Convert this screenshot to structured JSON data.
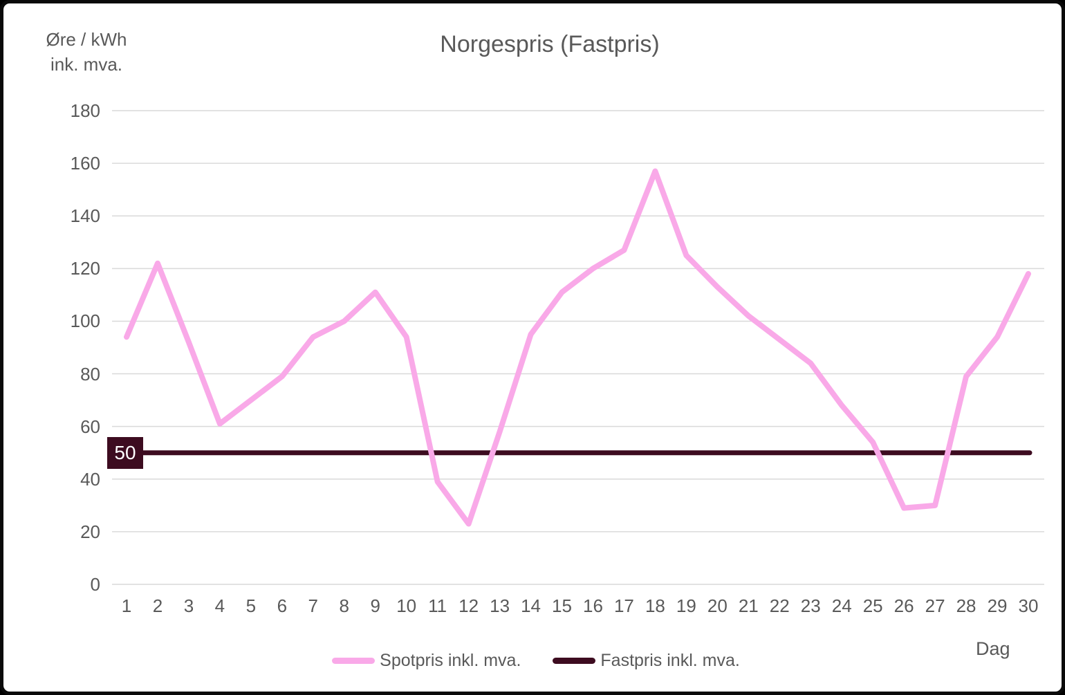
{
  "title": "Norgespris (Fastpris)",
  "y_axis": {
    "title_line1": "Øre / kWh",
    "title_line2": "ink. mva.",
    "ticks": [
      0,
      20,
      40,
      60,
      80,
      100,
      120,
      140,
      160,
      180
    ]
  },
  "x_axis": {
    "title": "Dag",
    "ticks": [
      1,
      2,
      3,
      4,
      5,
      6,
      7,
      8,
      9,
      10,
      11,
      12,
      13,
      14,
      15,
      16,
      17,
      18,
      19,
      20,
      21,
      22,
      23,
      24,
      25,
      26,
      27,
      28,
      29,
      30
    ]
  },
  "fastpris_badge": "50",
  "legend": [
    {
      "label": "Spotpris inkl. mva.",
      "color": "#F9A9E8"
    },
    {
      "label": "Fastpris inkl. mva.",
      "color": "#3D0C20"
    }
  ],
  "colors": {
    "spot_line": "#F9A9E8",
    "fast_line": "#3D0C20",
    "gridline": "#D9D9D9",
    "text": "#595959",
    "badge_bg": "#3D0C20",
    "badge_text": "#ffffff",
    "frame_border": "#0a0a0a",
    "background": "#ffffff"
  },
  "chart_data": {
    "type": "line",
    "title": "Norgespris (Fastpris)",
    "xlabel": "Dag",
    "ylabel": "Øre / kWh ink. mva.",
    "ylim": [
      0,
      180
    ],
    "xlim": [
      1,
      30
    ],
    "grid": true,
    "legend_position": "bottom",
    "x": [
      1,
      2,
      3,
      4,
      5,
      6,
      7,
      8,
      9,
      10,
      11,
      12,
      13,
      14,
      15,
      16,
      17,
      18,
      19,
      20,
      21,
      22,
      23,
      24,
      25,
      26,
      27,
      28,
      29,
      30
    ],
    "series": [
      {
        "name": "Spotpris inkl. mva.",
        "color": "#F9A9E8",
        "values": [
          94,
          122,
          92,
          61,
          70,
          79,
          94,
          100,
          111,
          94,
          39,
          23,
          58,
          95,
          111,
          120,
          127,
          157,
          125,
          113,
          102,
          93,
          84,
          68,
          54,
          29,
          30,
          79,
          94,
          118
        ]
      },
      {
        "name": "Fastpris inkl. mva.",
        "color": "#3D0C20",
        "annotation": "50",
        "values": [
          50,
          50,
          50,
          50,
          50,
          50,
          50,
          50,
          50,
          50,
          50,
          50,
          50,
          50,
          50,
          50,
          50,
          50,
          50,
          50,
          50,
          50,
          50,
          50,
          50,
          50,
          50,
          50,
          50,
          50
        ]
      }
    ]
  }
}
